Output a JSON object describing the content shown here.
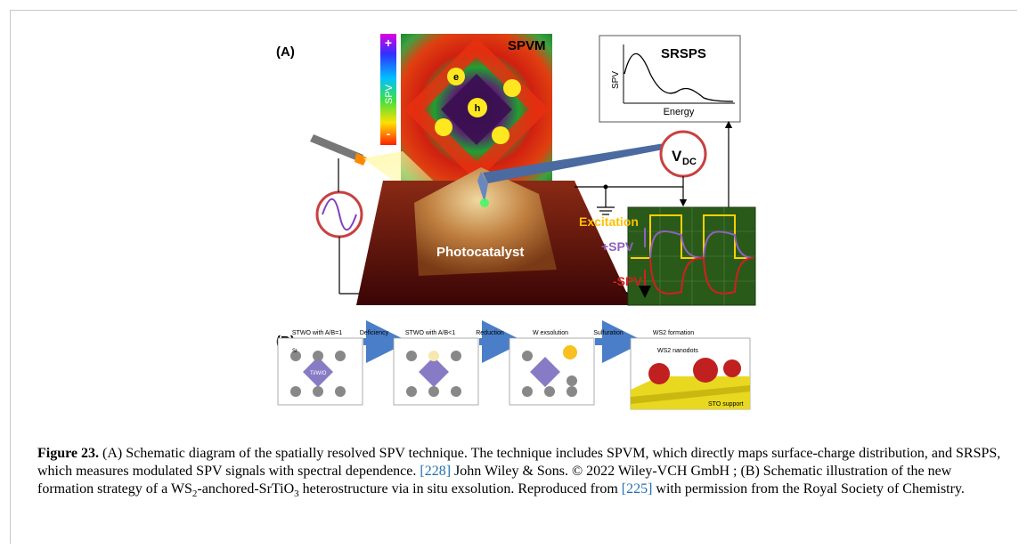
{
  "figure": {
    "panel_a": {
      "label": "(A)",
      "spvm_title": "SPVM",
      "scale_plus": "+",
      "scale_label": "SPV",
      "scale_minus": "-",
      "electron": "e",
      "hole": "h",
      "srsps_title": "SRSPS",
      "srsps_ylabel": "SPV",
      "srsps_xlabel": "Energy",
      "vdc_main": "V",
      "vdc_sub": "DC",
      "photocatalyst_label": "Photocatalyst",
      "excitation_label": "Excitation",
      "plus_spv_label": "+SPV",
      "minus_spv_label": "-SPV"
    },
    "panel_b": {
      "label": "(B)",
      "stages": [
        "STWO with A/B=1",
        "STWO with A/B<1",
        "W exsolution",
        "WS2 formation"
      ],
      "arrows": [
        "Deficiency",
        "Reduction",
        "Sulfuration"
      ],
      "sr_label": "Sr",
      "octa_label": "Ti/W/O",
      "nanodots_label": "WS2 nanodots",
      "support_label": "STO support"
    }
  },
  "caption": {
    "figure_label": "Figure 23.",
    "text_1": " (A) Schematic diagram of the spatially resolved SPV technique. The technique includes SPVM, which directly maps surface-charge distribution, and SRSPS, which measures modulated SPV signals with spectral dependence. ",
    "ref_1": "[228]",
    "text_2": " John Wiley & Sons. © 2022 Wiley-VCH GmbH ; (B) Schematic illustration of the new formation strategy of a WS",
    "sub_1": "2",
    "text_3": "-anchored-SrTiO",
    "sub_2": "3",
    "text_4": " heterostructure via in situ exsolution. Reproduced from ",
    "ref_2": "[225]",
    "text_5": " with permission from the Royal Society of Chemistry."
  }
}
